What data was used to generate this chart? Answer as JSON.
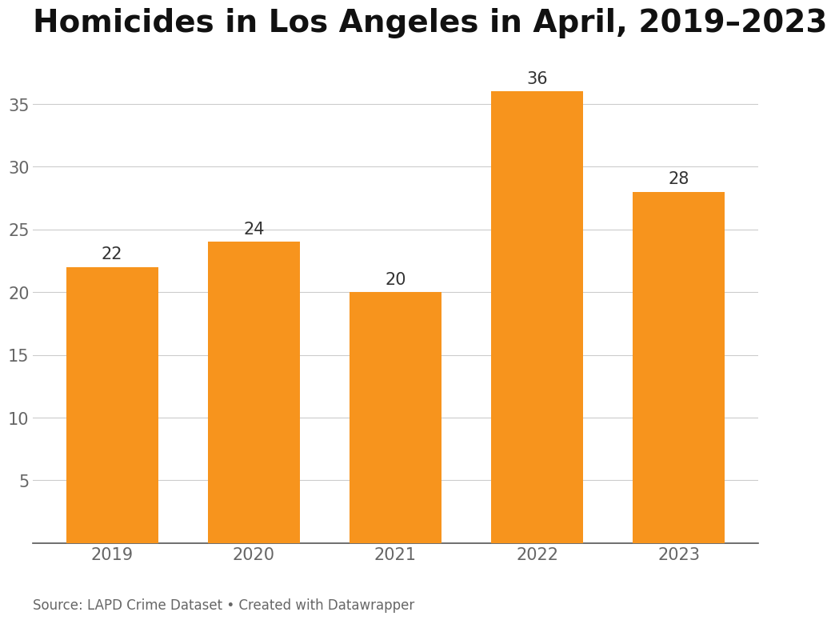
{
  "title": "Homicides in Los Angeles in April, 2019–2023",
  "categories": [
    "2019",
    "2020",
    "2021",
    "2022",
    "2023"
  ],
  "values": [
    22,
    24,
    20,
    36,
    28
  ],
  "bar_color": "#F7941D",
  "background_color": "#ffffff",
  "ylim": [
    0,
    39
  ],
  "yticks": [
    5,
    10,
    15,
    20,
    25,
    30,
    35
  ],
  "title_fontsize": 28,
  "tick_fontsize": 15,
  "annotation_fontsize": 15,
  "source_text": "Source: LAPD Crime Dataset • Created with Datawrapper",
  "source_fontsize": 12,
  "grid_color": "#cccccc",
  "spine_color": "#555555",
  "text_color": "#333333",
  "tick_color": "#666666"
}
